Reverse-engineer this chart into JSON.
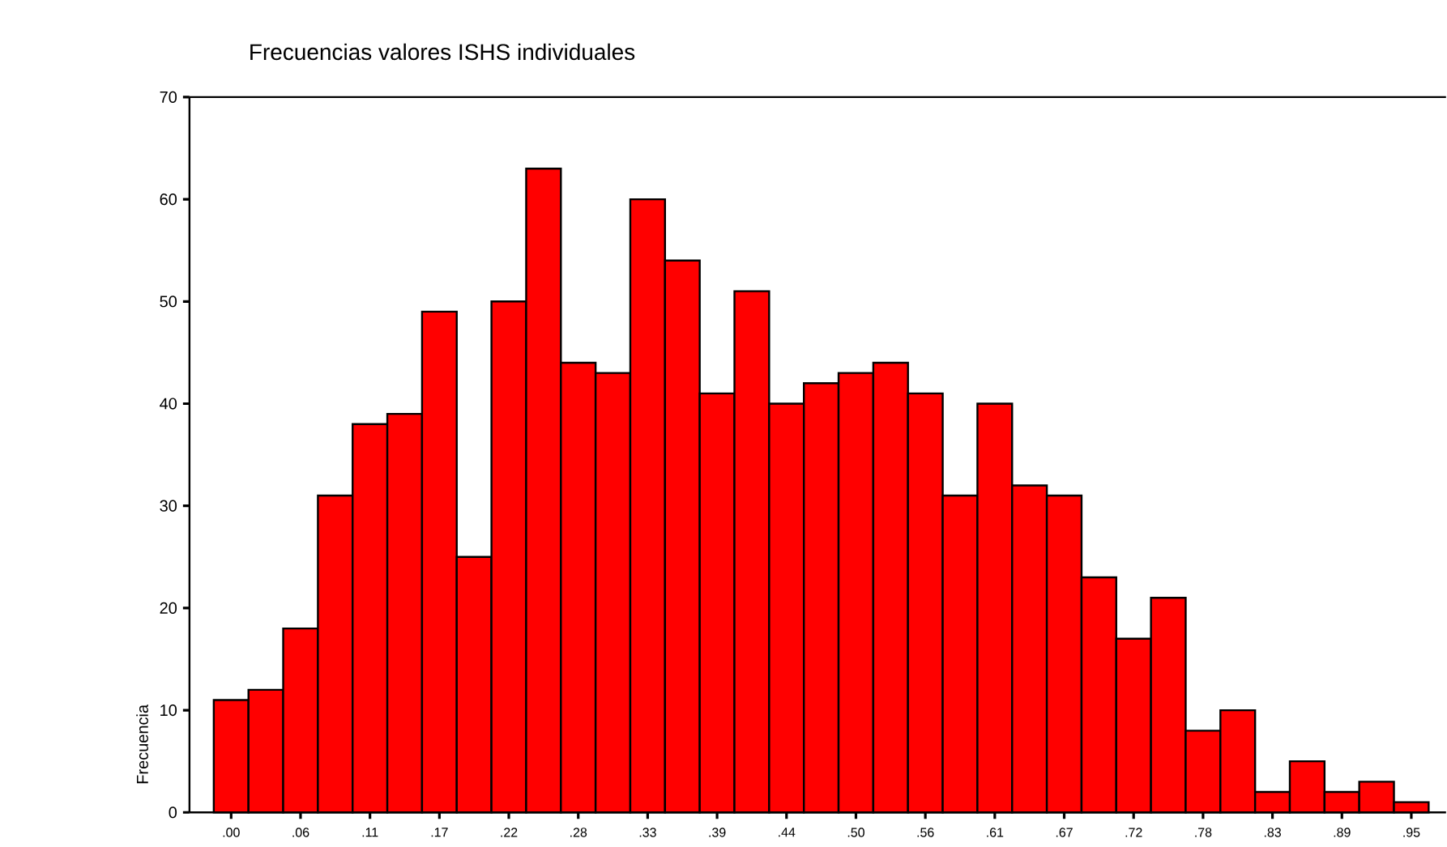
{
  "chart_data": {
    "type": "bar",
    "title": "Frecuencias valores ISHS individuales",
    "ylabel": "Frecuencia",
    "categories": [
      ".00",
      null,
      ".06",
      null,
      ".11",
      null,
      ".17",
      null,
      ".22",
      null,
      ".28",
      null,
      ".33",
      null,
      ".39",
      null,
      ".44",
      null,
      ".50",
      null,
      ".56",
      null,
      ".61",
      null,
      ".67",
      null,
      ".72",
      null,
      ".78",
      null,
      ".83",
      null,
      ".89",
      null,
      ".95"
    ],
    "values": [
      11,
      12,
      18,
      31,
      38,
      39,
      49,
      25,
      50,
      63,
      44,
      43,
      60,
      54,
      41,
      51,
      40,
      42,
      43,
      44,
      41,
      31,
      40,
      32,
      31,
      23,
      17,
      21,
      8,
      10,
      2,
      5,
      2,
      3,
      1
    ],
    "color": "#ff0000",
    "ylim": [
      0,
      70
    ],
    "yticks": [
      0,
      10,
      20,
      30,
      40,
      50,
      60,
      70
    ]
  }
}
